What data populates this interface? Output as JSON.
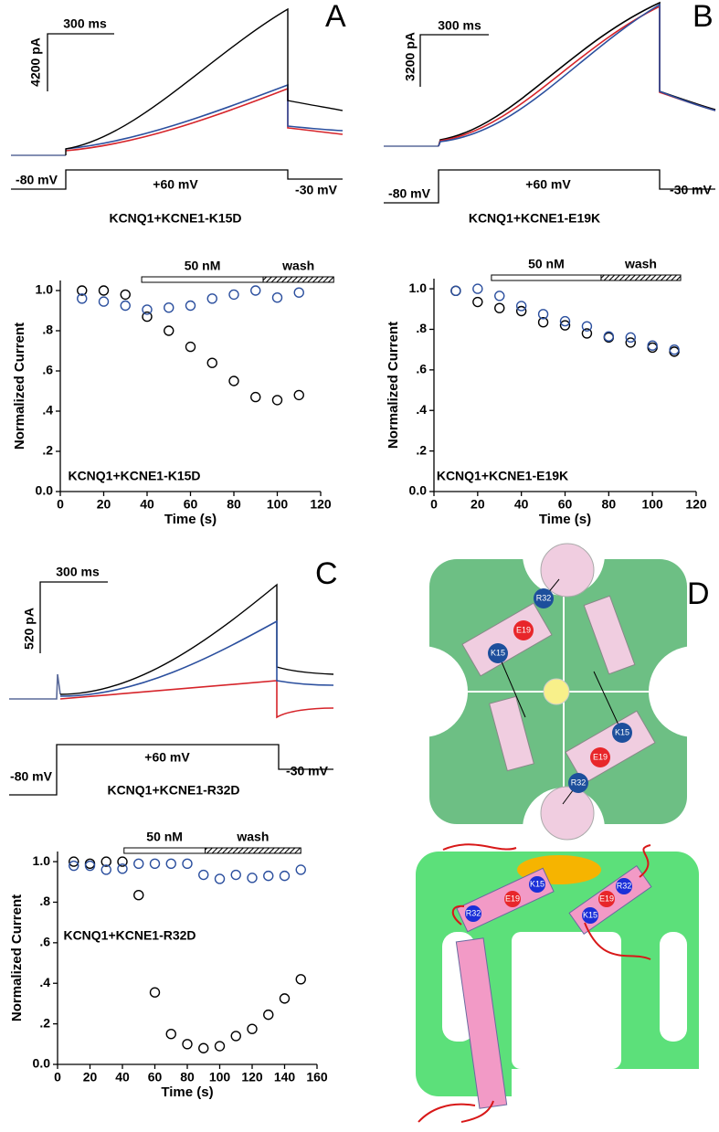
{
  "chart_data": [
    {
      "type": "scatter",
      "annotation": "KCNQ1+KCNE1-K15D",
      "xlabel": "Time (s)",
      "ylabel": "Normalized Current",
      "x": [
        10,
        20,
        30,
        40,
        50,
        60,
        70,
        80,
        90,
        100,
        110
      ],
      "series": [
        {
          "color": "#000000",
          "values": [
            1.0,
            1.0,
            0.98,
            0.87,
            0.8,
            0.72,
            0.64,
            0.55,
            0.47,
            0.455,
            0.48
          ]
        },
        {
          "color": "#2b4f9e",
          "values": [
            0.96,
            0.945,
            0.925,
            0.905,
            0.915,
            0.925,
            0.96,
            0.98,
            1.0,
            0.965,
            0.99
          ]
        }
      ],
      "treatments": [
        {
          "label": "50 nM",
          "range": [
            37.5,
            93.5
          ]
        },
        {
          "label": "wash",
          "range": [
            93.5,
            126
          ]
        }
      ],
      "xlim": [
        0,
        120
      ],
      "xticks": [
        0,
        20,
        40,
        60,
        80,
        100,
        120
      ],
      "ylim": [
        0,
        1.05
      ],
      "yticks": [
        {
          "value": 0,
          "label": "0.0"
        },
        {
          "value": 0.2,
          "label": ".2"
        },
        {
          "value": 0.4,
          "label": ".4"
        },
        {
          "value": 0.6,
          "label": ".6"
        },
        {
          "value": 0.8,
          "label": ".8"
        },
        {
          "value": 1,
          "label": "1.0"
        }
      ]
    },
    {
      "type": "scatter",
      "annotation": "KCNQ1+KCNE1-E19K",
      "xlabel": "Time (s)",
      "ylabel": "Normalized Current",
      "x": [
        10,
        20,
        30,
        40,
        50,
        60,
        70,
        80,
        90,
        100,
        110
      ],
      "series": [
        {
          "color": "#000000",
          "values": [
            0.99,
            0.935,
            0.905,
            0.89,
            0.835,
            0.82,
            0.78,
            0.76,
            0.735,
            0.71,
            0.69
          ]
        },
        {
          "color": "#2b4f9e",
          "values": [
            0.99,
            1.0,
            0.965,
            0.915,
            0.875,
            0.84,
            0.815,
            0.765,
            0.76,
            0.72,
            0.7
          ]
        }
      ],
      "treatments": [
        {
          "label": "50 nM",
          "range": [
            26.3,
            76.5
          ]
        },
        {
          "label": "wash",
          "range": [
            76.5,
            112.9
          ]
        }
      ],
      "xlim": [
        0,
        120
      ],
      "xticks": [
        0,
        20,
        40,
        60,
        80,
        100,
        120
      ],
      "ylim": [
        0,
        1.05
      ],
      "yticks": [
        {
          "value": 0,
          "label": "0.0"
        },
        {
          "value": 0.2,
          "label": ".2"
        },
        {
          "value": 0.4,
          "label": ".4"
        },
        {
          "value": 0.6,
          "label": ".6"
        },
        {
          "value": 0.8,
          "label": ".8"
        },
        {
          "value": 1,
          "label": "1.0"
        }
      ]
    },
    {
      "type": "scatter",
      "annotation": "KCNQ1+KCNE1-R32D",
      "xlabel": "Time (s)",
      "ylabel": "Normalized Current",
      "x": [
        10,
        20,
        30,
        40,
        50,
        60,
        70,
        80,
        90,
        100,
        110,
        120,
        130,
        140,
        150
      ],
      "series": [
        {
          "color": "#000000",
          "values": [
            1.0,
            0.99,
            1.0,
            1.0,
            0.835,
            0.355,
            0.15,
            0.1,
            0.08,
            0.09,
            0.14,
            0.175,
            0.245,
            0.325,
            0.42
          ]
        },
        {
          "color": "#2b4f9e",
          "values": [
            0.98,
            0.98,
            0.96,
            0.965,
            0.99,
            0.99,
            0.99,
            0.99,
            0.935,
            0.915,
            0.935,
            0.92,
            0.93,
            0.93,
            0.96
          ]
        }
      ],
      "treatments": [
        {
          "label": "50 nM",
          "range": [
            41,
            91
          ]
        },
        {
          "label": "wash",
          "range": [
            91,
            150
          ]
        }
      ],
      "xlim": [
        0,
        160
      ],
      "xticks": [
        0,
        20,
        40,
        60,
        80,
        100,
        120,
        140,
        160
      ],
      "ylim": [
        0,
        1.05
      ],
      "yticks": [
        {
          "value": 0,
          "label": "0.0"
        },
        {
          "value": 0.2,
          "label": ".2"
        },
        {
          "value": 0.4,
          "label": ".4"
        },
        {
          "value": 0.6,
          "label": ".6"
        },
        {
          "value": 0.8,
          "label": ".8"
        },
        {
          "value": 1,
          "label": "1.0"
        }
      ]
    }
  ],
  "traces": [
    {
      "panel": "A",
      "scale_time": "300 ms",
      "scale_current": "4200 pA",
      "steps": [
        "-80 mV",
        "+60 mV",
        "-30 mV"
      ],
      "construct": "KCNQ1+KCNE1-K15D"
    },
    {
      "panel": "B",
      "scale_time": "300 ms",
      "scale_current": "3200 pA",
      "steps": [
        "-80 mV",
        "+60 mV",
        "-30 mV"
      ],
      "construct": "KCNQ1+KCNE1-E19K"
    },
    {
      "panel": "C",
      "scale_time": "300 ms",
      "scale_current": "520 pA",
      "steps": [
        "-80 mV",
        "+60 mV",
        "-30 mV"
      ],
      "construct": "KCNQ1+KCNE1-R32D"
    }
  ],
  "diagram": {
    "panel": "D",
    "top_labels": [
      "R32",
      "E19",
      "K15",
      "K15",
      "E19",
      "R32"
    ],
    "bottom_labels": [
      "K15",
      "E19",
      "R32",
      "R32",
      "E19",
      "K15"
    ]
  }
}
